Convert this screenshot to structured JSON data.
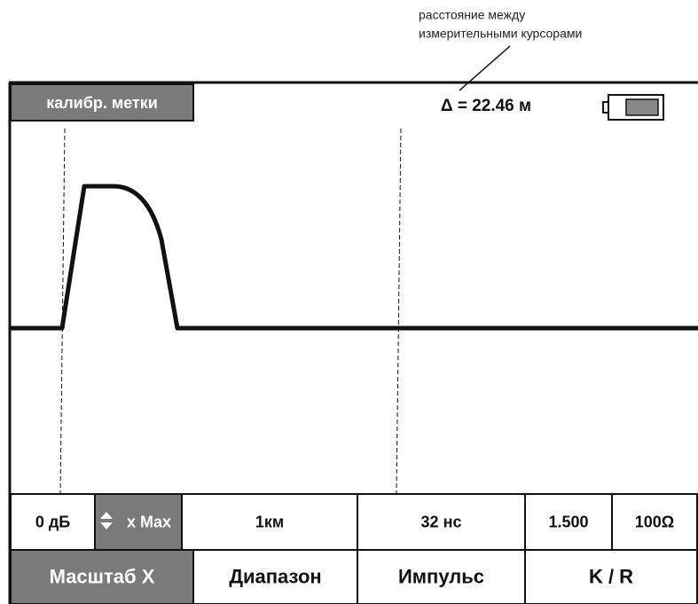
{
  "annotation": {
    "lines": [
      "расстояние между",
      "измерительными курсорами"
    ]
  },
  "header": {
    "mode_label": "калибр. метки",
    "delta": "Δ = 22.46 м"
  },
  "table": {
    "rows": [
      [
        "0 дБ",
        "x Max",
        "1км",
        "32 нс",
        "1.500",
        "100Ω"
      ],
      [
        "Масштаб X",
        "Диапазон",
        "Импульс",
        "K / R"
      ]
    ]
  }
}
